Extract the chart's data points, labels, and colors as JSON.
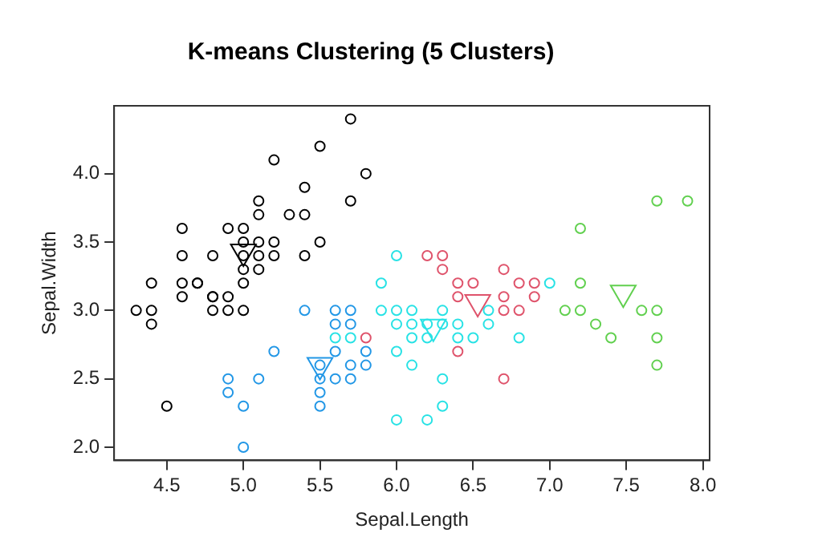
{
  "chart_data": {
    "type": "scatter",
    "title": "K-means Clustering (5 Clusters)",
    "xlabel": "Sepal.Length",
    "ylabel": "Sepal.Width",
    "xlim": [
      4.156,
      8.044
    ],
    "ylim": [
      1.904,
      4.496
    ],
    "xticks": [
      4.5,
      {
        "value": 5,
        "label": "5.0"
      },
      5.5,
      {
        "value": 6,
        "label": "6.0"
      },
      6.5,
      {
        "value": 7,
        "label": "7.0"
      },
      7.5,
      {
        "value": 8,
        "label": "8.0"
      }
    ],
    "yticks": [
      {
        "value": 2,
        "label": "2.0"
      },
      2.5,
      {
        "value": 3,
        "label": "3.0"
      },
      3.5,
      {
        "value": 4,
        "label": "4.0"
      }
    ],
    "grid": false,
    "legend": false,
    "marker": "circle",
    "series": [
      {
        "color": "#000000",
        "x": [
          5.1,
          4.9,
          4.7,
          4.6,
          5.0,
          5.4,
          4.6,
          5.0,
          4.4,
          4.9,
          5.4,
          4.8,
          4.8,
          4.3,
          5.8,
          5.7,
          5.7,
          5.1,
          5.4,
          5.1,
          4.6,
          5.1,
          5.0,
          5.2,
          5.2,
          4.8,
          5.2,
          5.5,
          5.0,
          5.5,
          4.9,
          4.4,
          5.1,
          5.0,
          4.5,
          4.4,
          4.6,
          5.3,
          5.0,
          4.7,
          4.8
        ],
        "values": [
          3.5,
          3.0,
          3.2,
          3.1,
          3.6,
          3.9,
          3.4,
          3.4,
          2.9,
          3.1,
          3.7,
          3.4,
          3.0,
          3.0,
          4.0,
          4.4,
          3.8,
          3.8,
          3.4,
          3.7,
          3.6,
          3.3,
          3.0,
          3.5,
          3.4,
          3.1,
          4.1,
          4.2,
          3.2,
          3.5,
          3.6,
          3.0,
          3.4,
          3.5,
          2.3,
          3.2,
          3.2,
          3.7,
          3.3,
          3.2,
          3.1
        ]
      },
      {
        "color": "#2297E6",
        "x": [
          4.9,
          4.9,
          5.0,
          5.0,
          5.1,
          5.2,
          5.4,
          5.5,
          5.5,
          5.5,
          5.5,
          5.6,
          5.6,
          5.6,
          5.6,
          5.7,
          5.7,
          5.7,
          5.7,
          5.8,
          5.8
        ],
        "values": [
          2.4,
          2.5,
          2.0,
          2.3,
          2.5,
          2.7,
          3.0,
          2.3,
          2.4,
          2.5,
          2.6,
          3.0,
          2.9,
          2.7,
          2.5,
          3.0,
          2.9,
          2.6,
          2.5,
          2.7,
          2.6
        ]
      },
      {
        "color": "#28E2E5",
        "x": [
          5.6,
          5.7,
          5.9,
          5.9,
          6.0,
          6.0,
          6.0,
          6.0,
          6.0,
          6.1,
          6.1,
          6.1,
          6.1,
          6.2,
          6.2,
          6.2,
          6.3,
          6.3,
          6.3,
          6.3,
          6.4,
          6.4,
          6.5,
          6.6,
          6.6,
          6.8,
          7.0
        ],
        "values": [
          2.8,
          2.8,
          3.2,
          3.0,
          3.4,
          3.0,
          2.9,
          2.7,
          2.2,
          3.0,
          2.9,
          2.8,
          2.6,
          2.9,
          2.8,
          2.2,
          2.9,
          2.5,
          2.3,
          3.0,
          2.9,
          2.8,
          2.8,
          3.0,
          2.9,
          2.8,
          3.2
        ]
      },
      {
        "color": "#DF536B",
        "x": [
          5.8,
          6.2,
          6.3,
          6.3,
          6.4,
          6.5,
          6.4,
          6.4,
          6.7,
          6.7,
          6.7,
          6.8,
          6.9,
          6.9,
          6.8,
          6.7
        ],
        "values": [
          2.8,
          3.4,
          3.4,
          3.3,
          3.2,
          3.2,
          3.1,
          2.7,
          3.3,
          3.1,
          3.0,
          3.2,
          3.2,
          3.1,
          3.0,
          2.5
        ]
      },
      {
        "color": "#61D04F",
        "x": [
          7.1,
          7.2,
          7.2,
          7.2,
          7.3,
          7.4,
          7.6,
          7.7,
          7.7,
          7.7,
          7.7,
          7.9
        ],
        "values": [
          3.0,
          3.6,
          3.2,
          3.0,
          2.9,
          2.8,
          3.0,
          3.8,
          3.0,
          2.8,
          2.6,
          3.8
        ]
      },
      {
        "marker": "triangle",
        "colors": [
          "#000000",
          "#2297E6",
          "#28E2E5",
          "#DF536B",
          "#61D04F"
        ],
        "x": [
          5.0,
          5.5,
          6.24,
          6.53,
          7.48
        ],
        "values": [
          3.43,
          2.6,
          2.88,
          3.06,
          3.13
        ]
      }
    ]
  }
}
